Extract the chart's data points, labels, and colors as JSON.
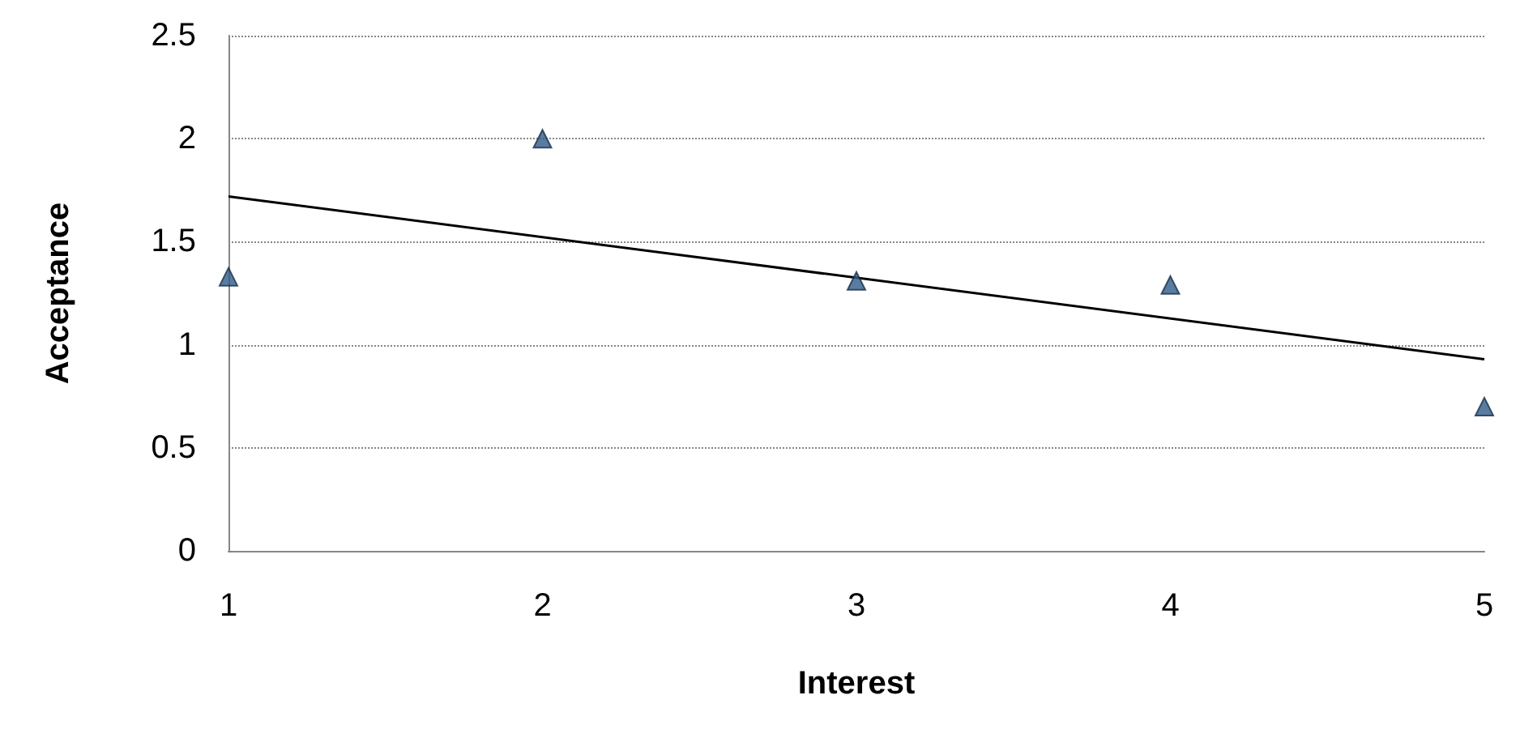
{
  "chart_data": {
    "type": "scatter",
    "xlabel": "Interest",
    "ylabel": "Acceptance",
    "x": [
      1,
      2,
      3,
      4,
      5
    ],
    "series": [
      {
        "color": "#2e5c8a",
        "marker": "triangle",
        "values": [
          1.33,
          2.0,
          1.31,
          1.29,
          0.7
        ]
      },
      {
        "type": "line",
        "color": "#000000",
        "marker": "none",
        "x": [
          1,
          5
        ],
        "values": [
          1.72,
          0.93
        ]
      }
    ],
    "xlim": [
      1,
      5
    ],
    "xticks": [
      1,
      2,
      3,
      4,
      5
    ],
    "ylim": [
      0,
      2.5
    ],
    "yticks": [
      0,
      0.5,
      1,
      1.5,
      2,
      2.5
    ],
    "grid": "y"
  }
}
